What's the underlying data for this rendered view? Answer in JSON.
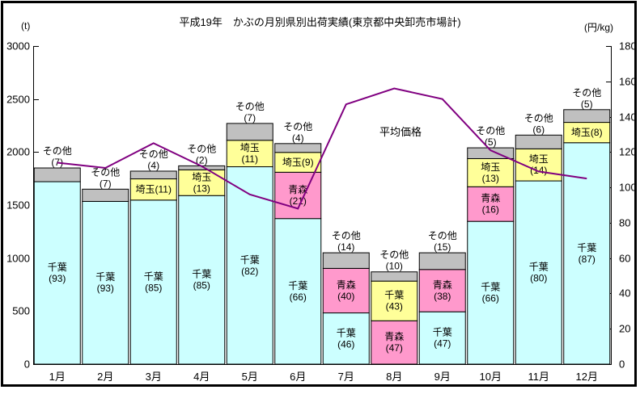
{
  "title": "平成19年　かぶの月別県別出荷実績(東京都中央卸売市場計)",
  "left_axis_unit": "(t)",
  "right_axis_unit": "(円/kg)",
  "chart_data": {
    "type": "bar",
    "subtype": "stacked-bars-with-price-line",
    "categories": [
      "1月",
      "2月",
      "3月",
      "4月",
      "5月",
      "6月",
      "7月",
      "8月",
      "9月",
      "10月",
      "11月",
      "12月"
    ],
    "left_axis": {
      "unit": "(t)",
      "min": 0,
      "max": 3000,
      "step": 500
    },
    "right_axis": {
      "unit": "(円/kg)",
      "min": 0,
      "max": 180,
      "step": 20
    },
    "palette": {
      "cyan": "#CCFFFF",
      "pink": "#FF99CC",
      "yellow": "#FFFF99",
      "gray": "#C0C0C0"
    },
    "bars": [
      {
        "month": "1月",
        "total_t": 1850,
        "segments": [
          {
            "name": "千葉",
            "pct": 93,
            "fill": "cyan",
            "label_lines": [
              "千葉",
              "(93)"
            ],
            "label_pos": "inside"
          },
          {
            "name": "その他",
            "pct": 7,
            "fill": "gray",
            "label_lines": [
              "その他",
              "(7)"
            ],
            "label_pos": "above"
          }
        ]
      },
      {
        "month": "2月",
        "total_t": 1650,
        "segments": [
          {
            "name": "千葉",
            "pct": 93,
            "fill": "cyan",
            "label_lines": [
              "千葉",
              "(93)"
            ],
            "label_pos": "inside"
          },
          {
            "name": "その他",
            "pct": 7,
            "fill": "gray",
            "label_lines": [
              "その他",
              "(7)"
            ],
            "label_pos": "above"
          }
        ]
      },
      {
        "month": "3月",
        "total_t": 1820,
        "segments": [
          {
            "name": "千葉",
            "pct": 85,
            "fill": "cyan",
            "label_lines": [
              "千葉",
              "(85)"
            ],
            "label_pos": "inside"
          },
          {
            "name": "埼玉",
            "pct": 11,
            "fill": "yellow",
            "label_lines": [
              "埼玉(11)"
            ],
            "label_pos": "inside"
          },
          {
            "name": "その他",
            "pct": 4,
            "fill": "gray",
            "label_lines": [
              "その他",
              "(4)"
            ],
            "label_pos": "above"
          }
        ]
      },
      {
        "month": "4月",
        "total_t": 1870,
        "segments": [
          {
            "name": "千葉",
            "pct": 85,
            "fill": "cyan",
            "label_lines": [
              "千葉",
              "(85)"
            ],
            "label_pos": "inside"
          },
          {
            "name": "埼玉",
            "pct": 13,
            "fill": "yellow",
            "label_lines": [
              "埼玉",
              "(13)"
            ],
            "label_pos": "inside"
          },
          {
            "name": "その他",
            "pct": 2,
            "fill": "gray",
            "label_lines": [
              "その他",
              "(2)"
            ],
            "label_pos": "above"
          }
        ]
      },
      {
        "month": "5月",
        "total_t": 2270,
        "segments": [
          {
            "name": "千葉",
            "pct": 82,
            "fill": "cyan",
            "label_lines": [
              "千葉",
              "(82)"
            ],
            "label_pos": "inside"
          },
          {
            "name": "埼玉",
            "pct": 11,
            "fill": "yellow",
            "label_lines": [
              "埼玉",
              "(11)"
            ],
            "label_pos": "inside"
          },
          {
            "name": "その他",
            "pct": 7,
            "fill": "gray",
            "label_lines": [
              "その他",
              "(7)"
            ],
            "label_pos": "above"
          }
        ]
      },
      {
        "month": "6月",
        "total_t": 2080,
        "segments": [
          {
            "name": "千葉",
            "pct": 66,
            "fill": "cyan",
            "label_lines": [
              "千葉",
              "(66)"
            ],
            "label_pos": "inside"
          },
          {
            "name": "青森",
            "pct": 21,
            "fill": "pink",
            "label_lines": [
              "青森",
              "(21)"
            ],
            "label_pos": "inside"
          },
          {
            "name": "埼玉",
            "pct": 9,
            "fill": "yellow",
            "label_lines": [
              "埼玉(9)"
            ],
            "label_pos": "inside"
          },
          {
            "name": "その他",
            "pct": 4,
            "fill": "gray",
            "label_lines": [
              "その他",
              "(4)"
            ],
            "label_pos": "above"
          }
        ]
      },
      {
        "month": "7月",
        "total_t": 1050,
        "segments": [
          {
            "name": "千葉",
            "pct": 46,
            "fill": "cyan",
            "label_lines": [
              "千葉",
              "(46)"
            ],
            "label_pos": "inside"
          },
          {
            "name": "青森",
            "pct": 40,
            "fill": "pink",
            "label_lines": [
              "青森",
              "(40)"
            ],
            "label_pos": "inside"
          },
          {
            "name": "その他",
            "pct": 14,
            "fill": "gray",
            "label_lines": [
              "その他",
              "(14)"
            ],
            "label_pos": "above"
          }
        ]
      },
      {
        "month": "8月",
        "total_t": 870,
        "segments": [
          {
            "name": "青森",
            "pct": 47,
            "fill": "pink",
            "label_lines": [
              "青森",
              "(47)"
            ],
            "label_pos": "inside"
          },
          {
            "name": "千葉",
            "pct": 43,
            "fill": "yellow",
            "label_lines": [
              "千葉",
              "(43)"
            ],
            "label_pos": "inside"
          },
          {
            "name": "その他",
            "pct": 10,
            "fill": "gray",
            "label_lines": [
              "その他",
              "(10)"
            ],
            "label_pos": "above"
          }
        ]
      },
      {
        "month": "9月",
        "total_t": 1050,
        "segments": [
          {
            "name": "千葉",
            "pct": 47,
            "fill": "cyan",
            "label_lines": [
              "千葉",
              "(47)"
            ],
            "label_pos": "inside"
          },
          {
            "name": "青森",
            "pct": 38,
            "fill": "pink",
            "label_lines": [
              "青森",
              "(38)"
            ],
            "label_pos": "inside"
          },
          {
            "name": "その他",
            "pct": 15,
            "fill": "gray",
            "label_lines": [
              "その他",
              "(15)"
            ],
            "label_pos": "above"
          }
        ]
      },
      {
        "month": "10月",
        "total_t": 2040,
        "segments": [
          {
            "name": "千葉",
            "pct": 66,
            "fill": "cyan",
            "label_lines": [
              "千葉",
              "(66)"
            ],
            "label_pos": "inside"
          },
          {
            "name": "青森",
            "pct": 16,
            "fill": "pink",
            "label_lines": [
              "青森",
              "(16)"
            ],
            "label_pos": "inside"
          },
          {
            "name": "埼玉",
            "pct": 13,
            "fill": "yellow",
            "label_lines": [
              "埼玉",
              "(13)"
            ],
            "label_pos": "inside"
          },
          {
            "name": "その他",
            "pct": 5,
            "fill": "gray",
            "label_lines": [
              "その他",
              "(5)"
            ],
            "label_pos": "above"
          }
        ]
      },
      {
        "month": "11月",
        "total_t": 2160,
        "segments": [
          {
            "name": "千葉",
            "pct": 80,
            "fill": "cyan",
            "label_lines": [
              "千葉",
              "(80)"
            ],
            "label_pos": "inside"
          },
          {
            "name": "埼玉",
            "pct": 14,
            "fill": "yellow",
            "label_lines": [
              "埼玉",
              "(14)"
            ],
            "label_pos": "inside"
          },
          {
            "name": "その他",
            "pct": 6,
            "fill": "gray",
            "label_lines": [
              "その他",
              "(6)"
            ],
            "label_pos": "above"
          }
        ]
      },
      {
        "month": "12月",
        "total_t": 2400,
        "segments": [
          {
            "name": "千葉",
            "pct": 87,
            "fill": "cyan",
            "label_lines": [
              "千葉",
              "(87)"
            ],
            "label_pos": "inside"
          },
          {
            "name": "埼玉",
            "pct": 8,
            "fill": "yellow",
            "label_lines": [
              "埼玉(8)"
            ],
            "label_pos": "inside"
          },
          {
            "name": "その他",
            "pct": 5,
            "fill": "gray",
            "label_lines": [
              "その他",
              "(5)"
            ],
            "label_pos": "above"
          }
        ]
      }
    ],
    "price_line": {
      "label": "平均価格",
      "unit": "円/kg",
      "color": "#800080",
      "values": [
        114,
        111,
        125,
        112,
        96,
        88,
        147,
        156,
        150,
        121,
        109,
        105
      ]
    }
  }
}
